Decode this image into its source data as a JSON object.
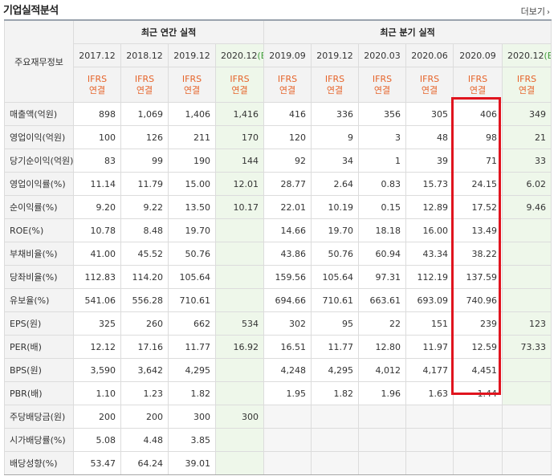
{
  "title": "기업실적분석",
  "more_label": "더보기",
  "more_icon": "chevron-right-icon",
  "corner_label": "주요재무정보",
  "groups": {
    "annual": "최근 연간 실적",
    "quarter": "최근 분기 실적"
  },
  "periods": [
    {
      "label": "2017.12",
      "est": false
    },
    {
      "label": "2018.12",
      "est": false
    },
    {
      "label": "2019.12",
      "est": false
    },
    {
      "label": "2020.12",
      "est": true
    },
    {
      "label": "2019.09",
      "est": false
    },
    {
      "label": "2019.12",
      "est": false
    },
    {
      "label": "2020.03",
      "est": false
    },
    {
      "label": "2020.06",
      "est": false
    },
    {
      "label": "2020.09",
      "est": false
    },
    {
      "label": "2020.12",
      "est": true
    }
  ],
  "est_marker": "(E)",
  "ifrs_line1": "IFRS",
  "ifrs_line2": "연결",
  "rows": [
    {
      "label": "매출액(억원)",
      "values": [
        "898",
        "1,069",
        "1,406",
        "1,416",
        "416",
        "336",
        "356",
        "305",
        "406",
        "349"
      ]
    },
    {
      "label": "영업이익(억원)",
      "values": [
        "100",
        "126",
        "211",
        "170",
        "120",
        "9",
        "3",
        "48",
        "98",
        "21"
      ]
    },
    {
      "label": "당기순이익(억원)",
      "values": [
        "83",
        "99",
        "190",
        "144",
        "92",
        "34",
        "1",
        "39",
        "71",
        "33"
      ]
    },
    {
      "label": "영업이익률(%)",
      "values": [
        "11.14",
        "11.79",
        "15.00",
        "12.01",
        "28.77",
        "2.64",
        "0.83",
        "15.73",
        "24.15",
        "6.02"
      ]
    },
    {
      "label": "순이익률(%)",
      "values": [
        "9.20",
        "9.22",
        "13.50",
        "10.17",
        "22.01",
        "10.19",
        "0.15",
        "12.89",
        "17.52",
        "9.46"
      ]
    },
    {
      "label": "ROE(%)",
      "values": [
        "10.78",
        "8.48",
        "19.70",
        "",
        "14.66",
        "19.70",
        "18.18",
        "16.00",
        "13.49",
        ""
      ]
    },
    {
      "label": "부채비율(%)",
      "values": [
        "41.00",
        "45.52",
        "50.76",
        "",
        "43.86",
        "50.76",
        "60.94",
        "43.34",
        "38.22",
        ""
      ]
    },
    {
      "label": "당좌비율(%)",
      "values": [
        "112.83",
        "114.20",
        "105.64",
        "",
        "159.56",
        "105.64",
        "97.31",
        "112.19",
        "137.59",
        ""
      ]
    },
    {
      "label": "유보율(%)",
      "values": [
        "541.06",
        "556.28",
        "710.61",
        "",
        "694.66",
        "710.61",
        "663.61",
        "693.09",
        "740.96",
        ""
      ]
    },
    {
      "label": "EPS(원)",
      "values": [
        "325",
        "260",
        "662",
        "534",
        "302",
        "95",
        "22",
        "151",
        "239",
        "123"
      ]
    },
    {
      "label": "PER(배)",
      "values": [
        "12.12",
        "17.16",
        "11.77",
        "16.92",
        "16.51",
        "11.77",
        "12.80",
        "11.97",
        "12.59",
        "73.33"
      ]
    },
    {
      "label": "BPS(원)",
      "values": [
        "3,590",
        "3,642",
        "4,295",
        "",
        "4,248",
        "4,295",
        "4,012",
        "4,177",
        "4,451",
        ""
      ]
    },
    {
      "label": "PBR(배)",
      "values": [
        "1.10",
        "1.23",
        "1.82",
        "",
        "1.95",
        "1.82",
        "1.96",
        "1.63",
        "1.44",
        ""
      ]
    },
    {
      "label": "주당배당금(원)",
      "values": [
        "200",
        "200",
        "300",
        "300",
        "",
        "",
        "",
        "",
        "",
        ""
      ]
    },
    {
      "label": "시가배당률(%)",
      "values": [
        "5.08",
        "4.48",
        "3.85",
        "",
        "",
        "",
        "",
        "",
        "",
        ""
      ]
    },
    {
      "label": "배당성향(%)",
      "values": [
        "53.47",
        "64.24",
        "39.01",
        "",
        "",
        "",
        "",
        "",
        "",
        ""
      ]
    }
  ],
  "highlight_color": "#e0141e"
}
